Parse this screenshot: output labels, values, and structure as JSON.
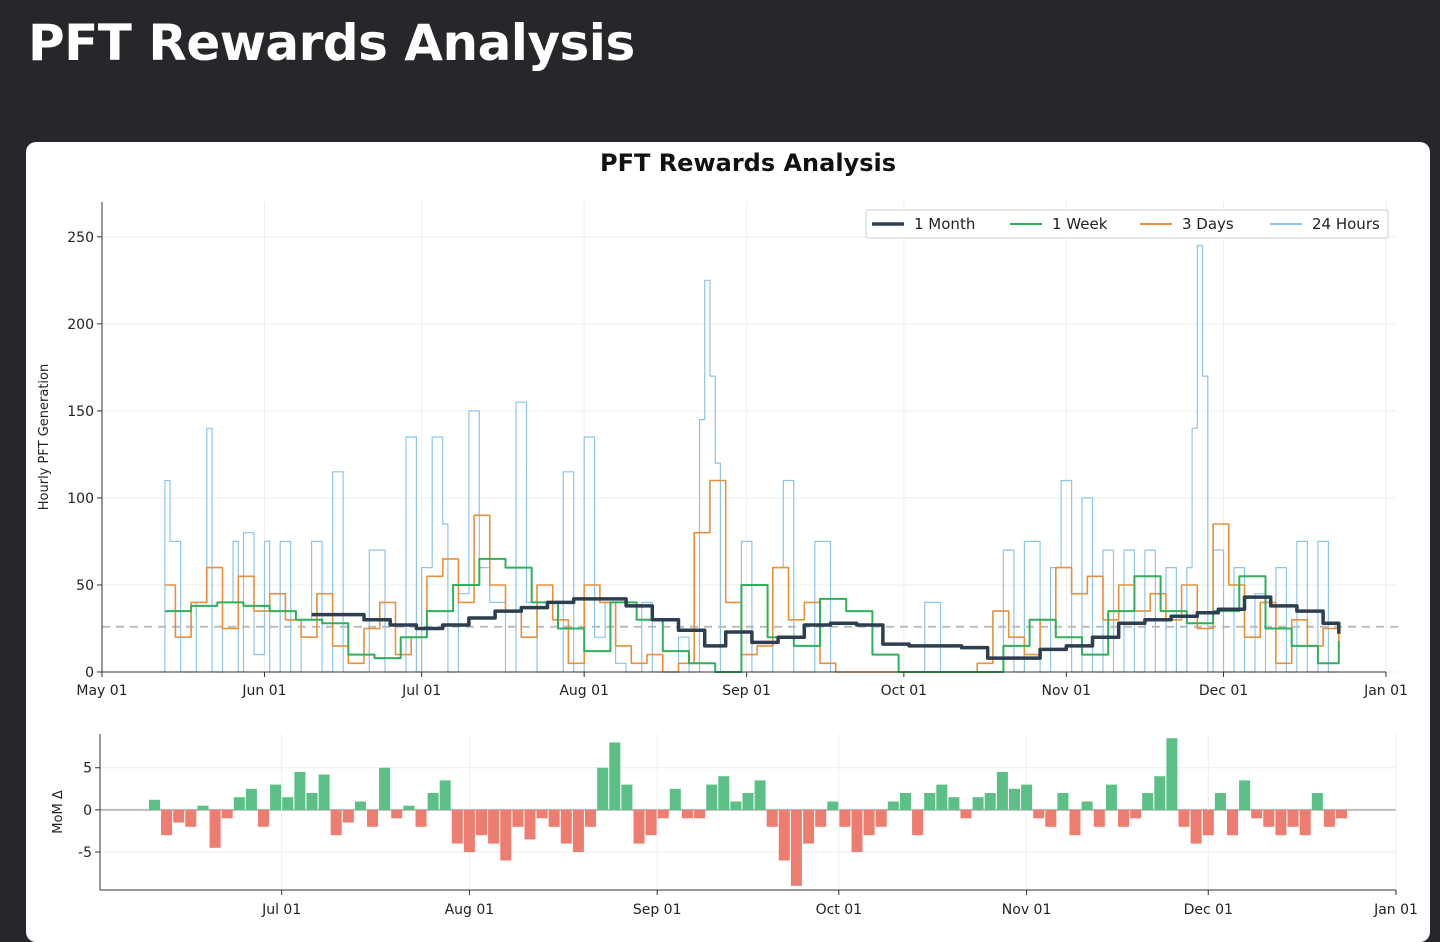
{
  "page": {
    "title": "PFT Rewards Analysis"
  },
  "chart_data": [
    {
      "type": "line",
      "title": "PFT Rewards Analysis",
      "xlabel": "",
      "ylabel": "Hourly PFT Generation",
      "x_range": [
        "2024-05-01",
        "2025-01-01"
      ],
      "ylim": [
        0,
        270
      ],
      "yticks": [
        0,
        50,
        100,
        150,
        200,
        250
      ],
      "xticks": [
        "May 01",
        "Jun 01",
        "Jul 01",
        "Aug 01",
        "Sep 01",
        "Oct 01",
        "Nov 01",
        "Dec 01",
        "Jan 01"
      ],
      "xtick_dates": [
        "2024-05-01",
        "2024-06-01",
        "2024-07-01",
        "2024-08-01",
        "2024-09-01",
        "2024-10-01",
        "2024-11-01",
        "2024-12-01",
        "2025-01-01"
      ],
      "reference_line": {
        "y": 26,
        "style": "dashed"
      },
      "legend_position": "top-right",
      "colors": {
        "month": "#2c3e50",
        "week": "#2fb05a",
        "three_days": "#e8913a",
        "day": "#8ec4ea"
      },
      "series": [
        {
          "name": "1 Month",
          "key": "month",
          "x": [
            "2024-06-10",
            "2024-06-15",
            "2024-06-20",
            "2024-06-25",
            "2024-06-30",
            "2024-07-05",
            "2024-07-10",
            "2024-07-15",
            "2024-07-20",
            "2024-07-25",
            "2024-07-30",
            "2024-08-04",
            "2024-08-09",
            "2024-08-14",
            "2024-08-19",
            "2024-08-24",
            "2024-08-28",
            "2024-09-02",
            "2024-09-07",
            "2024-09-12",
            "2024-09-17",
            "2024-09-22",
            "2024-09-27",
            "2024-10-02",
            "2024-10-07",
            "2024-10-12",
            "2024-10-17",
            "2024-10-22",
            "2024-10-27",
            "2024-11-01",
            "2024-11-06",
            "2024-11-11",
            "2024-11-16",
            "2024-11-21",
            "2024-11-26",
            "2024-11-30",
            "2024-12-05",
            "2024-12-10",
            "2024-12-15",
            "2024-12-20",
            "2024-12-23"
          ],
          "values": [
            33,
            33,
            30,
            27,
            25,
            27,
            31,
            35,
            37,
            40,
            42,
            42,
            38,
            30,
            24,
            15,
            23,
            17,
            20,
            27,
            28,
            27,
            16,
            15,
            15,
            14,
            8,
            8,
            13,
            15,
            20,
            28,
            30,
            32,
            34,
            36,
            43,
            38,
            35,
            28,
            22
          ]
        },
        {
          "name": "1 Week",
          "key": "week",
          "x": [
            "2024-05-13",
            "2024-05-18",
            "2024-05-23",
            "2024-05-28",
            "2024-06-02",
            "2024-06-07",
            "2024-06-12",
            "2024-06-17",
            "2024-06-22",
            "2024-06-27",
            "2024-07-02",
            "2024-07-07",
            "2024-07-12",
            "2024-07-17",
            "2024-07-22",
            "2024-07-27",
            "2024-08-01",
            "2024-08-06",
            "2024-08-11",
            "2024-08-16",
            "2024-08-21",
            "2024-08-26",
            "2024-08-31",
            "2024-09-05",
            "2024-09-10",
            "2024-09-15",
            "2024-09-20",
            "2024-09-25",
            "2024-09-30",
            "2024-10-05",
            "2024-10-10",
            "2024-10-15",
            "2024-10-20",
            "2024-10-25",
            "2024-10-30",
            "2024-11-04",
            "2024-11-09",
            "2024-11-14",
            "2024-11-19",
            "2024-11-24",
            "2024-11-29",
            "2024-12-04",
            "2024-12-09",
            "2024-12-14",
            "2024-12-19",
            "2024-12-23"
          ],
          "values": [
            35,
            38,
            40,
            38,
            35,
            30,
            28,
            10,
            8,
            20,
            35,
            50,
            65,
            60,
            40,
            25,
            12,
            40,
            30,
            12,
            5,
            0,
            50,
            20,
            15,
            42,
            35,
            10,
            0,
            0,
            0,
            0,
            15,
            30,
            20,
            10,
            35,
            55,
            35,
            28,
            35,
            55,
            25,
            15,
            5,
            18
          ]
        },
        {
          "name": "3 Days",
          "key": "three_days",
          "x": [
            "2024-05-13",
            "2024-05-15",
            "2024-05-18",
            "2024-05-21",
            "2024-05-24",
            "2024-05-27",
            "2024-05-30",
            "2024-06-02",
            "2024-06-05",
            "2024-06-08",
            "2024-06-11",
            "2024-06-14",
            "2024-06-17",
            "2024-06-20",
            "2024-06-23",
            "2024-06-26",
            "2024-06-29",
            "2024-07-02",
            "2024-07-05",
            "2024-07-08",
            "2024-07-11",
            "2024-07-14",
            "2024-07-17",
            "2024-07-20",
            "2024-07-23",
            "2024-07-26",
            "2024-07-29",
            "2024-08-01",
            "2024-08-04",
            "2024-08-07",
            "2024-08-10",
            "2024-08-13",
            "2024-08-16",
            "2024-08-19",
            "2024-08-22",
            "2024-08-25",
            "2024-08-28",
            "2024-08-31",
            "2024-09-03",
            "2024-09-06",
            "2024-09-09",
            "2024-09-12",
            "2024-09-15",
            "2024-09-18",
            "2024-09-21",
            "2024-09-24",
            "2024-09-27",
            "2024-09-30",
            "2024-10-03",
            "2024-10-06",
            "2024-10-09",
            "2024-10-12",
            "2024-10-15",
            "2024-10-18",
            "2024-10-21",
            "2024-10-24",
            "2024-10-27",
            "2024-10-30",
            "2024-11-02",
            "2024-11-05",
            "2024-11-08",
            "2024-11-11",
            "2024-11-14",
            "2024-11-17",
            "2024-11-20",
            "2024-11-23",
            "2024-11-26",
            "2024-11-29",
            "2024-12-02",
            "2024-12-05",
            "2024-12-08",
            "2024-12-11",
            "2024-12-14",
            "2024-12-17",
            "2024-12-20",
            "2024-12-23"
          ],
          "values": [
            50,
            20,
            40,
            60,
            25,
            55,
            35,
            45,
            30,
            20,
            45,
            15,
            5,
            25,
            40,
            10,
            20,
            55,
            65,
            40,
            90,
            50,
            35,
            20,
            50,
            30,
            5,
            50,
            40,
            15,
            5,
            10,
            0,
            5,
            80,
            110,
            40,
            10,
            15,
            60,
            30,
            40,
            5,
            0,
            0,
            0,
            0,
            0,
            0,
            0,
            0,
            0,
            5,
            35,
            20,
            10,
            30,
            60,
            45,
            55,
            30,
            50,
            35,
            45,
            30,
            50,
            25,
            85,
            50,
            20,
            40,
            5,
            30,
            15,
            25,
            10
          ]
        },
        {
          "name": "24 Hours",
          "key": "day",
          "x": [
            "2024-05-12",
            "2024-05-13",
            "2024-05-14",
            "2024-05-16",
            "2024-05-19",
            "2024-05-21",
            "2024-05-22",
            "2024-05-24",
            "2024-05-26",
            "2024-05-27",
            "2024-05-28",
            "2024-05-30",
            "2024-06-01",
            "2024-06-02",
            "2024-06-04",
            "2024-06-06",
            "2024-06-08",
            "2024-06-10",
            "2024-06-12",
            "2024-06-14",
            "2024-06-16",
            "2024-06-19",
            "2024-06-21",
            "2024-06-24",
            "2024-06-26",
            "2024-06-28",
            "2024-06-30",
            "2024-07-01",
            "2024-07-03",
            "2024-07-05",
            "2024-07-06",
            "2024-07-08",
            "2024-07-10",
            "2024-07-12",
            "2024-07-14",
            "2024-07-17",
            "2024-07-19",
            "2024-07-21",
            "2024-07-23",
            "2024-07-26",
            "2024-07-28",
            "2024-07-30",
            "2024-08-01",
            "2024-08-03",
            "2024-08-05",
            "2024-08-07",
            "2024-08-09",
            "2024-08-12",
            "2024-08-14",
            "2024-08-16",
            "2024-08-19",
            "2024-08-21",
            "2024-08-23",
            "2024-08-24",
            "2024-08-25",
            "2024-08-26",
            "2024-08-27",
            "2024-08-29",
            "2024-08-31",
            "2024-09-02",
            "2024-09-04",
            "2024-09-06",
            "2024-09-08",
            "2024-09-10",
            "2024-09-12",
            "2024-09-14",
            "2024-09-17",
            "2024-09-20",
            "2024-09-23",
            "2024-09-26",
            "2024-09-29",
            "2024-10-02",
            "2024-10-05",
            "2024-10-08",
            "2024-10-11",
            "2024-10-14",
            "2024-10-17",
            "2024-10-20",
            "2024-10-22",
            "2024-10-24",
            "2024-10-27",
            "2024-10-29",
            "2024-10-31",
            "2024-11-02",
            "2024-11-04",
            "2024-11-06",
            "2024-11-08",
            "2024-11-10",
            "2024-11-12",
            "2024-11-14",
            "2024-11-16",
            "2024-11-18",
            "2024-11-20",
            "2024-11-22",
            "2024-11-24",
            "2024-11-25",
            "2024-11-26",
            "2024-11-27",
            "2024-11-28",
            "2024-11-29",
            "2024-12-01",
            "2024-12-03",
            "2024-12-05",
            "2024-12-07",
            "2024-12-09",
            "2024-12-11",
            "2024-12-13",
            "2024-12-15",
            "2024-12-17",
            "2024-12-19",
            "2024-12-21",
            "2024-12-23"
          ],
          "values": [
            0,
            110,
            75,
            0,
            40,
            140,
            0,
            40,
            75,
            0,
            80,
            10,
            75,
            0,
            75,
            0,
            30,
            75,
            0,
            115,
            0,
            0,
            70,
            0,
            0,
            135,
            0,
            60,
            135,
            85,
            0,
            45,
            150,
            60,
            40,
            0,
            155,
            40,
            0,
            0,
            115,
            0,
            135,
            20,
            40,
            5,
            0,
            40,
            0,
            0,
            20,
            0,
            145,
            225,
            170,
            120,
            0,
            0,
            75,
            0,
            0,
            60,
            110,
            0,
            0,
            75,
            0,
            0,
            0,
            0,
            0,
            0,
            40,
            0,
            0,
            0,
            0,
            70,
            0,
            75,
            0,
            60,
            110,
            0,
            100,
            0,
            70,
            0,
            70,
            0,
            70,
            0,
            60,
            0,
            60,
            140,
            245,
            170,
            0,
            70,
            0,
            60,
            0,
            45,
            0,
            60,
            0,
            75,
            0,
            75,
            0,
            0
          ]
        }
      ]
    },
    {
      "type": "bar",
      "title": "",
      "xlabel": "",
      "ylabel": "MoM Δ",
      "x_range": [
        "2024-06-01",
        "2025-01-01"
      ],
      "ylim": [
        -9.5,
        9
      ],
      "yticks": [
        5,
        0,
        -5
      ],
      "xticks": [
        "Jul 01",
        "Aug 01",
        "Sep 01",
        "Oct 01",
        "Nov 01",
        "Dec 01",
        "Jan 01"
      ],
      "xtick_dates": [
        "2024-07-01",
        "2024-08-01",
        "2024-09-01",
        "2024-10-01",
        "2024-11-01",
        "2024-12-01",
        "2025-01-01"
      ],
      "colors": {
        "positive": "#5cbf85",
        "negative": "#ec7d70"
      },
      "x": [
        "2024-06-10",
        "2024-06-12",
        "2024-06-14",
        "2024-06-16",
        "2024-06-18",
        "2024-06-20",
        "2024-06-22",
        "2024-06-24",
        "2024-06-26",
        "2024-06-28",
        "2024-06-30",
        "2024-07-02",
        "2024-07-04",
        "2024-07-06",
        "2024-07-08",
        "2024-07-10",
        "2024-07-12",
        "2024-07-14",
        "2024-07-16",
        "2024-07-18",
        "2024-07-20",
        "2024-07-22",
        "2024-07-24",
        "2024-07-26",
        "2024-07-28",
        "2024-07-30",
        "2024-08-01",
        "2024-08-03",
        "2024-08-05",
        "2024-08-07",
        "2024-08-09",
        "2024-08-11",
        "2024-08-13",
        "2024-08-15",
        "2024-08-17",
        "2024-08-19",
        "2024-08-21",
        "2024-08-23",
        "2024-08-25",
        "2024-08-27",
        "2024-08-29",
        "2024-08-31",
        "2024-09-02",
        "2024-09-04",
        "2024-09-06",
        "2024-09-08",
        "2024-09-10",
        "2024-09-12",
        "2024-09-14",
        "2024-09-16",
        "2024-09-18",
        "2024-09-20",
        "2024-09-22",
        "2024-09-24",
        "2024-09-26",
        "2024-09-28",
        "2024-09-30",
        "2024-10-02",
        "2024-10-04",
        "2024-10-06",
        "2024-10-08",
        "2024-10-10",
        "2024-10-12",
        "2024-10-14",
        "2024-10-16",
        "2024-10-18",
        "2024-10-20",
        "2024-10-22",
        "2024-10-24",
        "2024-10-26",
        "2024-10-28",
        "2024-10-30",
        "2024-11-01",
        "2024-11-03",
        "2024-11-05",
        "2024-11-07",
        "2024-11-09",
        "2024-11-11",
        "2024-11-13",
        "2024-11-15",
        "2024-11-17",
        "2024-11-19",
        "2024-11-21",
        "2024-11-23",
        "2024-11-25",
        "2024-11-27",
        "2024-11-29",
        "2024-12-01",
        "2024-12-03",
        "2024-12-05",
        "2024-12-07",
        "2024-12-09",
        "2024-12-11",
        "2024-12-13",
        "2024-12-15",
        "2024-12-17",
        "2024-12-19",
        "2024-12-21",
        "2024-12-23"
      ],
      "values": [
        1.2,
        -3,
        -1.5,
        -2,
        0.5,
        -4.5,
        -1,
        1.5,
        2.5,
        -2,
        3,
        1.5,
        4.5,
        2,
        4.2,
        -3,
        -1.5,
        1,
        -2,
        5,
        -1,
        0.5,
        -2,
        2,
        3.5,
        -4,
        -5,
        -3,
        -4,
        -6,
        -2,
        -3.5,
        -1,
        -2,
        -4,
        -5,
        -2,
        5,
        8,
        3,
        -4,
        -3,
        -1,
        2.5,
        -1,
        -1,
        3,
        4,
        1,
        2,
        3.5,
        -2,
        -6,
        -9,
        -4,
        -2,
        1,
        -2,
        -5,
        -3,
        -2,
        1,
        2,
        -3,
        2,
        3,
        1.5,
        -1,
        1.5,
        2,
        4.5,
        2.5,
        3,
        -1,
        -2,
        2,
        -3,
        1,
        -2,
        3,
        -2,
        -1,
        2,
        4,
        8.5,
        -2,
        -4,
        -3,
        2,
        -3,
        3.5,
        -1,
        -2,
        -3,
        -2,
        -3,
        2,
        -2,
        -1
      ]
    }
  ]
}
